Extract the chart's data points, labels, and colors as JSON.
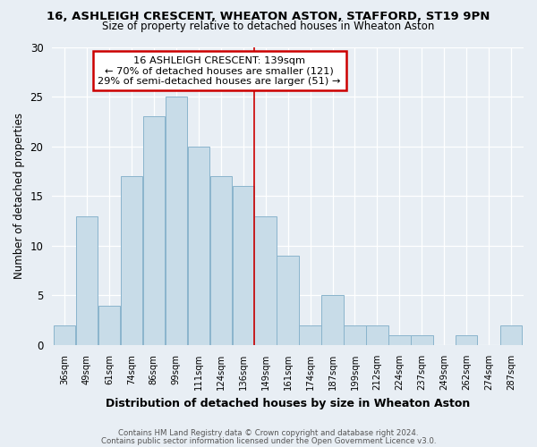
{
  "title1": "16, ASHLEIGH CRESCENT, WHEATON ASTON, STAFFORD, ST19 9PN",
  "title2": "Size of property relative to detached houses in Wheaton Aston",
  "xlabel": "Distribution of detached houses by size in Wheaton Aston",
  "ylabel": "Number of detached properties",
  "bin_labels": [
    "36sqm",
    "49sqm",
    "61sqm",
    "74sqm",
    "86sqm",
    "99sqm",
    "111sqm",
    "124sqm",
    "136sqm",
    "149sqm",
    "161sqm",
    "174sqm",
    "187sqm",
    "199sqm",
    "212sqm",
    "224sqm",
    "237sqm",
    "249sqm",
    "262sqm",
    "274sqm",
    "287sqm"
  ],
  "bar_heights": [
    2,
    13,
    4,
    17,
    23,
    25,
    20,
    17,
    16,
    13,
    9,
    2,
    5,
    2,
    2,
    1,
    1,
    0,
    1,
    0,
    2
  ],
  "bar_color": "#c8dce8",
  "bar_edge_color": "#8ab4cc",
  "vline_x": 8.5,
  "vline_color": "#cc0000",
  "annotation_title": "16 ASHLEIGH CRESCENT: 139sqm",
  "annotation_line1": "← 70% of detached houses are smaller (121)",
  "annotation_line2": "29% of semi-detached houses are larger (51) →",
  "annotation_box_color": "#ffffff",
  "annotation_box_edge": "#cc0000",
  "ylim": [
    0,
    30
  ],
  "yticks": [
    0,
    5,
    10,
    15,
    20,
    25,
    30
  ],
  "footer1": "Contains HM Land Registry data © Crown copyright and database right 2024.",
  "footer2": "Contains public sector information licensed under the Open Government Licence v3.0.",
  "background_color": "#e8eef4"
}
